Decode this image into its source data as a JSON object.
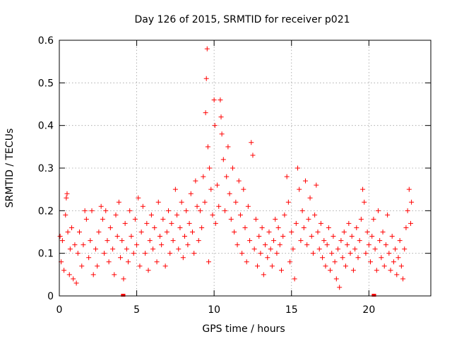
{
  "chart_data": {
    "type": "scatter",
    "title": "Day 126 of 2015, SRMTID for receiver p021",
    "xlabel": "GPS time / hours",
    "ylabel": "SRMTID / TECUs",
    "xlim": [
      0,
      24
    ],
    "ylim": [
      0,
      0.6
    ],
    "x_ticks": [
      0,
      5,
      10,
      15,
      20
    ],
    "x_tick_labels": [
      "0",
      "5",
      "10",
      "15",
      "20"
    ],
    "y_ticks": [
      0,
      0.1,
      0.2,
      0.3,
      0.4,
      0.5,
      0.6
    ],
    "y_tick_labels": [
      "0",
      "0.1",
      "0.2",
      "0.3",
      "0.4",
      "0.5",
      "0.6"
    ],
    "grid": true,
    "marker": "+",
    "series": [
      {
        "name": "p021",
        "color": "#ff0000",
        "points": [
          [
            0.05,
            0.14
          ],
          [
            0.12,
            0.08
          ],
          [
            0.2,
            0.13
          ],
          [
            0.3,
            0.06
          ],
          [
            0.4,
            0.19
          ],
          [
            0.45,
            0.23
          ],
          [
            0.5,
            0.24
          ],
          [
            0.55,
            0.15
          ],
          [
            0.65,
            0.05
          ],
          [
            0.7,
            0.11
          ],
          [
            0.8,
            0.16
          ],
          [
            0.9,
            0.04
          ],
          [
            1.0,
            0.12
          ],
          [
            1.1,
            0.03
          ],
          [
            1.2,
            0.1
          ],
          [
            1.3,
            0.15
          ],
          [
            1.45,
            0.07
          ],
          [
            1.55,
            0.12
          ],
          [
            1.65,
            0.2
          ],
          [
            1.75,
            0.18
          ],
          [
            1.9,
            0.09
          ],
          [
            2.0,
            0.13
          ],
          [
            2.1,
            0.2
          ],
          [
            2.2,
            0.05
          ],
          [
            2.35,
            0.11
          ],
          [
            2.45,
            0.07
          ],
          [
            2.55,
            0.15
          ],
          [
            2.7,
            0.21
          ],
          [
            2.8,
            0.18
          ],
          [
            2.9,
            0.1
          ],
          [
            3.0,
            0.2
          ],
          [
            3.1,
            0.13
          ],
          [
            3.2,
            0.08
          ],
          [
            3.3,
            0.16
          ],
          [
            3.45,
            0.11
          ],
          [
            3.55,
            0.05
          ],
          [
            3.65,
            0.19
          ],
          [
            3.75,
            0.14
          ],
          [
            3.85,
            0.22
          ],
          [
            3.95,
            0.09
          ],
          [
            4.05,
            0.13
          ],
          [
            4.15,
            0.04
          ],
          [
            4.25,
            0.17
          ],
          [
            4.35,
            0.11
          ],
          [
            4.45,
            0.08
          ],
          [
            4.55,
            0.2
          ],
          [
            4.65,
            0.14
          ],
          [
            4.8,
            0.1
          ],
          [
            4.9,
            0.18
          ],
          [
            5.0,
            0.12
          ],
          [
            5.1,
            0.23
          ],
          [
            5.2,
            0.07
          ],
          [
            5.3,
            0.15
          ],
          [
            5.4,
            0.21
          ],
          [
            5.55,
            0.1
          ],
          [
            5.65,
            0.17
          ],
          [
            5.75,
            0.06
          ],
          [
            5.85,
            0.13
          ],
          [
            5.95,
            0.19
          ],
          [
            6.05,
            0.11
          ],
          [
            6.15,
            0.16
          ],
          [
            6.3,
            0.08
          ],
          [
            6.4,
            0.22
          ],
          [
            6.5,
            0.14
          ],
          [
            6.6,
            0.12
          ],
          [
            6.7,
            0.18
          ],
          [
            6.85,
            0.07
          ],
          [
            6.95,
            0.15
          ],
          [
            7.05,
            0.2
          ],
          [
            7.15,
            0.1
          ],
          [
            7.25,
            0.17
          ],
          [
            7.35,
            0.13
          ],
          [
            7.5,
            0.25
          ],
          [
            7.6,
            0.19
          ],
          [
            7.7,
            0.11
          ],
          [
            7.8,
            0.16
          ],
          [
            7.9,
            0.22
          ],
          [
            8.0,
            0.09
          ],
          [
            8.1,
            0.14
          ],
          [
            8.2,
            0.2
          ],
          [
            8.3,
            0.12
          ],
          [
            8.4,
            0.17
          ],
          [
            8.5,
            0.24
          ],
          [
            8.6,
            0.15
          ],
          [
            8.7,
            0.1
          ],
          [
            8.8,
            0.27
          ],
          [
            8.9,
            0.21
          ],
          [
            9.0,
            0.13
          ],
          [
            9.1,
            0.2
          ],
          [
            9.2,
            0.16
          ],
          [
            9.3,
            0.28
          ],
          [
            9.4,
            0.22
          ],
          [
            9.45,
            0.43
          ],
          [
            9.5,
            0.51
          ],
          [
            9.55,
            0.58
          ],
          [
            9.6,
            0.35
          ],
          [
            9.65,
            0.08
          ],
          [
            9.7,
            0.3
          ],
          [
            9.8,
            0.25
          ],
          [
            9.9,
            0.19
          ],
          [
            10.0,
            0.46
          ],
          [
            10.05,
            0.4
          ],
          [
            10.1,
            0.17
          ],
          [
            10.2,
            0.26
          ],
          [
            10.3,
            0.21
          ],
          [
            10.4,
            0.46
          ],
          [
            10.45,
            0.42
          ],
          [
            10.5,
            0.38
          ],
          [
            10.6,
            0.32
          ],
          [
            10.7,
            0.2
          ],
          [
            10.8,
            0.28
          ],
          [
            10.9,
            0.35
          ],
          [
            11.0,
            0.24
          ],
          [
            11.1,
            0.18
          ],
          [
            11.2,
            0.3
          ],
          [
            11.3,
            0.15
          ],
          [
            11.4,
            0.22
          ],
          [
            11.5,
            0.12
          ],
          [
            11.6,
            0.27
          ],
          [
            11.7,
            0.19
          ],
          [
            11.8,
            0.1
          ],
          [
            11.9,
            0.25
          ],
          [
            12.0,
            0.16
          ],
          [
            12.1,
            0.08
          ],
          [
            12.2,
            0.21
          ],
          [
            12.3,
            0.13
          ],
          [
            12.4,
            0.36
          ],
          [
            12.5,
            0.33
          ],
          [
            12.6,
            0.11
          ],
          [
            12.7,
            0.18
          ],
          [
            12.8,
            0.07
          ],
          [
            12.9,
            0.14
          ],
          [
            13.0,
            0.1
          ],
          [
            13.1,
            0.16
          ],
          [
            13.2,
            0.05
          ],
          [
            13.3,
            0.12
          ],
          [
            13.45,
            0.09
          ],
          [
            13.55,
            0.15
          ],
          [
            13.65,
            0.11
          ],
          [
            13.75,
            0.07
          ],
          [
            13.85,
            0.13
          ],
          [
            13.95,
            0.18
          ],
          [
            14.05,
            0.1
          ],
          [
            14.15,
            0.16
          ],
          [
            14.25,
            0.12
          ],
          [
            14.35,
            0.06
          ],
          [
            14.45,
            0.14
          ],
          [
            14.55,
            0.19
          ],
          [
            14.7,
            0.28
          ],
          [
            14.8,
            0.22
          ],
          [
            14.9,
            0.08
          ],
          [
            15.0,
            0.15
          ],
          [
            15.1,
            0.11
          ],
          [
            15.2,
            0.04
          ],
          [
            15.3,
            0.17
          ],
          [
            15.4,
            0.3
          ],
          [
            15.5,
            0.25
          ],
          [
            15.6,
            0.13
          ],
          [
            15.7,
            0.2
          ],
          [
            15.8,
            0.16
          ],
          [
            15.9,
            0.27
          ],
          [
            16.0,
            0.12
          ],
          [
            16.1,
            0.18
          ],
          [
            16.2,
            0.23
          ],
          [
            16.3,
            0.14
          ],
          [
            16.4,
            0.1
          ],
          [
            16.5,
            0.19
          ],
          [
            16.6,
            0.26
          ],
          [
            16.7,
            0.15
          ],
          [
            16.8,
            0.11
          ],
          [
            16.9,
            0.17
          ],
          [
            17.0,
            0.09
          ],
          [
            17.1,
            0.13
          ],
          [
            17.2,
            0.07
          ],
          [
            17.3,
            0.12
          ],
          [
            17.4,
            0.16
          ],
          [
            17.5,
            0.06
          ],
          [
            17.6,
            0.1
          ],
          [
            17.7,
            0.14
          ],
          [
            17.8,
            0.08
          ],
          [
            17.9,
            0.04
          ],
          [
            18.0,
            0.11
          ],
          [
            18.1,
            0.02
          ],
          [
            18.2,
            0.13
          ],
          [
            18.3,
            0.09
          ],
          [
            18.4,
            0.15
          ],
          [
            18.5,
            0.07
          ],
          [
            18.6,
            0.12
          ],
          [
            18.7,
            0.17
          ],
          [
            18.8,
            0.1
          ],
          [
            18.9,
            0.14
          ],
          [
            19.0,
            0.06
          ],
          [
            19.1,
            0.11
          ],
          [
            19.2,
            0.16
          ],
          [
            19.3,
            0.09
          ],
          [
            19.4,
            0.13
          ],
          [
            19.5,
            0.18
          ],
          [
            19.6,
            0.25
          ],
          [
            19.7,
            0.22
          ],
          [
            19.8,
            0.1
          ],
          [
            19.9,
            0.15
          ],
          [
            20.0,
            0.12
          ],
          [
            20.1,
            0.08
          ],
          [
            20.2,
            0.14
          ],
          [
            20.3,
            0.18
          ],
          [
            20.4,
            0.11
          ],
          [
            20.5,
            0.06
          ],
          [
            20.6,
            0.2
          ],
          [
            20.7,
            0.13
          ],
          [
            20.8,
            0.09
          ],
          [
            20.9,
            0.15
          ],
          [
            21.0,
            0.07
          ],
          [
            21.1,
            0.12
          ],
          [
            21.2,
            0.19
          ],
          [
            21.3,
            0.1
          ],
          [
            21.4,
            0.06
          ],
          [
            21.5,
            0.14
          ],
          [
            21.6,
            0.08
          ],
          [
            21.7,
            0.11
          ],
          [
            21.8,
            0.05
          ],
          [
            21.9,
            0.09
          ],
          [
            22.0,
            0.13
          ],
          [
            22.1,
            0.07
          ],
          [
            22.2,
            0.04
          ],
          [
            22.3,
            0.11
          ],
          [
            22.4,
            0.16
          ],
          [
            22.5,
            0.2
          ],
          [
            22.6,
            0.25
          ],
          [
            22.7,
            0.17
          ],
          [
            22.75,
            0.22
          ]
        ],
        "bottom_markers": [
          4.1,
          4.15,
          20.3,
          20.35
        ]
      }
    ]
  }
}
